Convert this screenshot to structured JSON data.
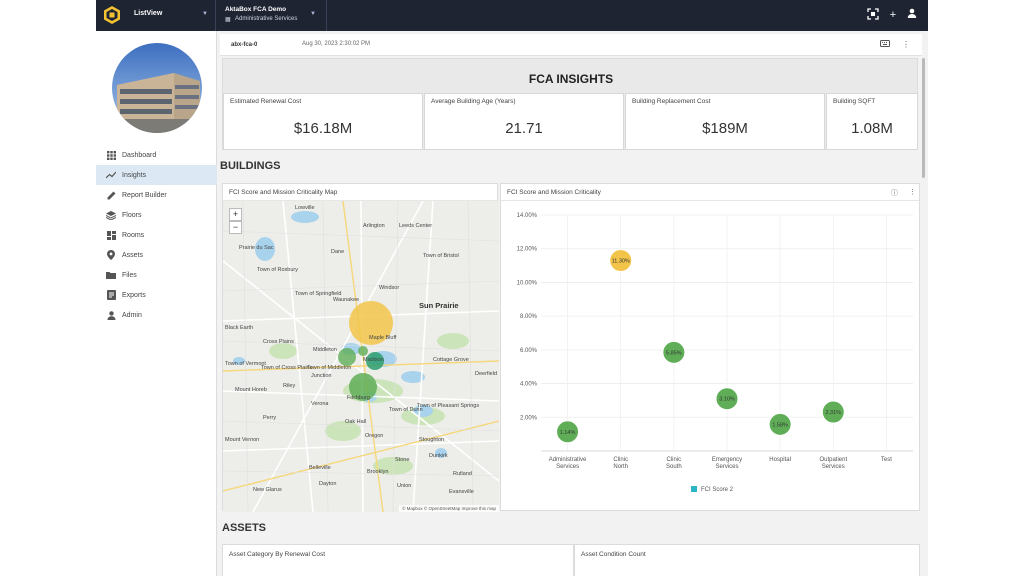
{
  "topbar": {
    "app_name": "ListView",
    "project_title": "AktaBox FCA Demo",
    "project_subtitle": "Administrative Services"
  },
  "sidebar": {
    "items": [
      {
        "label": "Dashboard",
        "icon": "grid-icon"
      },
      {
        "label": "Insights",
        "icon": "trend-icon",
        "active": true
      },
      {
        "label": "Report Builder",
        "icon": "pencil-icon"
      },
      {
        "label": "Floors",
        "icon": "layers-icon"
      },
      {
        "label": "Rooms",
        "icon": "rooms-icon"
      },
      {
        "label": "Assets",
        "icon": "pin-icon"
      },
      {
        "label": "Files",
        "icon": "folder-icon"
      },
      {
        "label": "Exports",
        "icon": "export-icon"
      },
      {
        "label": "Admin",
        "icon": "user-icon"
      }
    ]
  },
  "breadcrumb": {
    "id": "abx-fca-0",
    "date": "Aug 30, 2023 2:30:02 PM"
  },
  "fca": {
    "title": "FCA INSIGHTS",
    "kpis": [
      {
        "label": "Estimated Renewal Cost",
        "value": "$16.18M"
      },
      {
        "label": "Average Building Age (Years)",
        "value": "21.71"
      },
      {
        "label": "Building Replacement Cost",
        "value": "$189M"
      },
      {
        "label": "Building SQFT",
        "value": "1.08M"
      }
    ]
  },
  "buildings": {
    "title": "BUILDINGS",
    "map_title": "FCI Score and Mission Criticality Map",
    "chart_title": "FCI Score and Mission Criticality",
    "map_attribution": "© Mapbox © OpenStreetMap Improve this map",
    "map_labels": [
      "Lowville",
      "Arlington",
      "Leeds Center",
      "Prairie du Sac",
      "Dane",
      "Town of Bristol",
      "Town of Roxbury",
      "Windsor",
      "Town of Springfield",
      "Waunakee",
      "Sun Prairie",
      "Black Earth",
      "Cross Plains",
      "Middleton",
      "Maple Bluff",
      "Madison",
      "Cottage Grove",
      "Town of Vermont",
      "Town of Cross Plains",
      "Town of Middleton",
      "Junction",
      "Deerfield",
      "Mount Horeb",
      "Riley",
      "Verona",
      "Fitchburg",
      "Town of Dunn",
      "Town of Pleasant Springs",
      "Perry",
      "Oak Hall",
      "Oregon",
      "Stoughton",
      "Mount Vernon",
      "Stone",
      "Dunkirk",
      "Belleville",
      "Brooklyn",
      "Union",
      "New Glarus",
      "Dayton",
      "Rutland",
      "Evansville"
    ]
  },
  "chart_data": {
    "type": "scatter",
    "title": "FCI Score and Mission Criticality",
    "categories": [
      "Administrative Services",
      "Clinic North",
      "Clinic South",
      "Emergency Services",
      "Hospital",
      "Outpatient Services",
      "Test"
    ],
    "ylim": [
      0,
      14
    ],
    "y_ticks": [
      "2.00%",
      "4.00%",
      "6.00%",
      "8.00%",
      "10.00%",
      "12.00%",
      "14.00%"
    ],
    "legend": {
      "name": "FCI Score 2",
      "color": "#2bb5c6",
      "position": "bottom"
    },
    "points": [
      {
        "category": "Administrative Services",
        "y": 1.14,
        "label": "1.14%",
        "color": "#5fae57"
      },
      {
        "category": "Clinic North",
        "y": 11.3,
        "label": "11.30%",
        "color": "#f2c54a"
      },
      {
        "category": "Clinic South",
        "y": 5.85,
        "label": "5.85%",
        "color": "#5fae57"
      },
      {
        "category": "Emergency Services",
        "y": 3.1,
        "label": "3.10%",
        "color": "#5fae57"
      },
      {
        "category": "Hospital",
        "y": 1.58,
        "label": "1.58%",
        "color": "#5fae57"
      },
      {
        "category": "Outpatient Services",
        "y": 2.31,
        "label": "2.31%",
        "color": "#5fae57"
      }
    ]
  },
  "assets": {
    "title": "ASSETS",
    "cards": [
      "Asset Category By Renewal Cost",
      "Asset Condition Count"
    ]
  }
}
